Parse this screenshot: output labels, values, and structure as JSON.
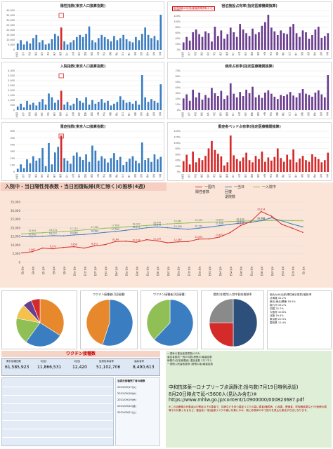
{
  "colors": {
    "blue": "#3a7dc1",
    "purple": "#6a3d8f",
    "red": "#d42a2a",
    "green": "#8fbf55",
    "orange": "#e8882c",
    "grey": "#8a8a8a",
    "dark": "#2d3d6b"
  },
  "top_charts": [
    {
      "title": "陽性指数(東京人口換算指数)",
      "color": "#3a7dc1",
      "ymax": 40000,
      "ticks": [
        "40,000",
        "35,000",
        "30,000",
        "25,000",
        "20,000",
        "15,000",
        "10,000",
        "5,000",
        "0"
      ],
      "values": [
        6,
        9,
        5,
        8,
        6,
        11,
        14,
        7,
        9,
        5,
        6,
        10,
        15,
        13,
        21,
        8,
        5,
        7,
        9,
        12,
        14,
        12,
        15,
        22,
        9,
        7,
        11,
        14,
        12,
        10,
        8,
        13,
        9,
        11,
        14,
        10,
        8,
        7,
        12,
        9,
        15,
        21,
        14,
        11,
        13,
        9,
        33
      ],
      "highlight": 14
    },
    {
      "title": "宿泊施設占有率(指定医療機関換算)",
      "color": "#6a3d8f",
      "ymax": 140,
      "ticks": [
        "140%",
        "120%",
        "100%",
        "80%",
        "60%",
        "40%",
        "20%",
        "0%"
      ],
      "note": "宿泊施設の状況(都道府県資料から)",
      "values": [
        8,
        14,
        10,
        19,
        22,
        17,
        14,
        20,
        18,
        9,
        25,
        15,
        21,
        12,
        17,
        24,
        19,
        14,
        28,
        22,
        18,
        15,
        23,
        17,
        19,
        26,
        30,
        38,
        24,
        20,
        16,
        21,
        18,
        17,
        25,
        28,
        18,
        14,
        21,
        19,
        12,
        16,
        22,
        25,
        13,
        15,
        18
      ]
    },
    {
      "title": "入院指数(東京人口換算指数)",
      "color": "#3a7dc1",
      "ymax": 4000,
      "ticks": [
        "4,000",
        "3,500",
        "3,000",
        "2,500",
        "2,000",
        "1,500",
        "1,000",
        "500",
        "0"
      ],
      "values": [
        4,
        7,
        3,
        10,
        6,
        8,
        5,
        9,
        12,
        6,
        18,
        14,
        8,
        11,
        21,
        6,
        9,
        5,
        7,
        13,
        10,
        8,
        14,
        6,
        11,
        7,
        9,
        12,
        8,
        10,
        5,
        7,
        9,
        15,
        11,
        8,
        9,
        7,
        10,
        6,
        38,
        14,
        9,
        12,
        10,
        8,
        28
      ],
      "highlight": 14
    },
    {
      "title": "病床占有率(指定医療機関換算)",
      "color": "#6a3d8f",
      "ymax": 70,
      "ticks": [
        "70%",
        "60%",
        "50%",
        "40%",
        "30%",
        "20%",
        "10%",
        "0%"
      ],
      "values": [
        20,
        27,
        16,
        35,
        22,
        30,
        18,
        26,
        21,
        38,
        29,
        24,
        33,
        19,
        25,
        46,
        28,
        22,
        31,
        24,
        35,
        29,
        40,
        22,
        26,
        21,
        30,
        34,
        28,
        23,
        19,
        26,
        24,
        27,
        31,
        25,
        22,
        29,
        36,
        28,
        26,
        23,
        30,
        34,
        27,
        22,
        60
      ]
    },
    {
      "title": "重症指数(東京人口換算指数)",
      "color": "#3a7dc1",
      "ymax": 600,
      "ticks": [
        "600",
        "500",
        "400",
        "300",
        "200",
        "100",
        "0"
      ],
      "values": [
        5,
        12,
        6,
        20,
        14,
        25,
        18,
        22,
        38,
        9,
        46,
        12,
        31,
        40,
        58,
        22,
        18,
        13,
        26,
        31,
        24,
        19,
        28,
        16,
        42,
        34,
        18,
        25,
        21,
        15,
        22,
        30,
        19,
        24,
        11,
        16,
        21,
        25,
        18,
        14,
        47,
        19,
        22,
        16,
        28,
        20,
        24
      ],
      "highlight": 14
    },
    {
      "title": "重症者ベッド占有率(指定医療機関換算)",
      "color": "#d42a2a",
      "ymax": 140,
      "ticks": [
        "140%",
        "120%",
        "100%",
        "80%",
        "60%",
        "40%",
        "20%",
        "0%"
      ],
      "values": [
        20,
        32,
        14,
        38,
        18,
        26,
        22,
        30,
        44,
        58,
        41,
        34,
        29,
        12,
        18,
        68,
        31,
        24,
        20,
        27,
        36,
        22,
        18,
        30,
        24,
        38,
        19,
        27,
        21,
        28,
        44,
        26,
        19,
        32,
        23,
        42,
        18,
        25,
        30,
        22,
        19,
        33,
        28,
        24,
        18,
        22,
        36
      ]
    }
  ],
  "prefs": [
    "北海道",
    "青森",
    "岩手",
    "宮城",
    "秋田",
    "山形",
    "福島",
    "茨城",
    "栃木",
    "群馬",
    "埼玉",
    "千葉",
    "東京",
    "神奈川",
    "新潟",
    "富山",
    "石川",
    "福井",
    "山梨",
    "長野",
    "岐阜",
    "静岡",
    "愛知",
    "三重",
    "滋賀",
    "京都",
    "大阪",
    "兵庫",
    "奈良",
    "和歌山",
    "鳥取",
    "島根",
    "岡山",
    "広島",
    "山口",
    "徳島",
    "香川",
    "愛媛",
    "高知",
    "福岡",
    "佐賀",
    "長崎",
    "熊本",
    "大分",
    "宮崎",
    "鹿児島",
    "沖縄"
  ],
  "trend": {
    "title": "入院中・当日陽性発表数・当日回復転帰(死亡除く)の推移(4週)",
    "yticks": [
      "35,000",
      "30,000",
      "25,000",
      "20,000",
      "15,000",
      "10,000",
      "5,000",
      "0"
    ],
    "legend": [
      "一国内",
      "一当日",
      "一入院中",
      "陽性者数",
      "回復",
      "退院数"
    ],
    "series": [
      {
        "name": "入院中",
        "color": "#8fbf55",
        "values": [
          16500,
          17000,
          17200,
          17600,
          17900,
          18300,
          18900,
          19200,
          19800,
          20100,
          20600,
          21000,
          21400,
          21800,
          22300,
          22600,
          22900,
          23100,
          23300,
          23500,
          23700,
          23900,
          24100,
          24200,
          24300,
          24300,
          24200,
          24100
        ]
      },
      {
        "name": "当日",
        "color": "#3a7dc1",
        "values": [
          15000,
          14800,
          15200,
          15500,
          15400,
          15900,
          16200,
          16800,
          17400,
          17900,
          18600,
          19300,
          20100,
          20500,
          20100,
          19600,
          19200,
          19800,
          20500,
          21300,
          22000,
          22800,
          23200,
          24200,
          25900,
          24100,
          22200,
          20600
        ]
      },
      {
        "name": "国内",
        "color": "#d42a2a",
        "values": [
          5500,
          6200,
          8300,
          7900,
          8700,
          9100,
          8300,
          9600,
          10300,
          12100,
          12300,
          11700,
          13200,
          12500,
          11400,
          11900,
          12100,
          13500,
          13600,
          14700,
          17200,
          21300,
          23600,
          29500,
          26800,
          22000,
          19800,
          17400
        ]
      }
    ],
    "labels_top": [
      "15,905",
      "16,574",
      "17,110",
      "17,340",
      "17,650",
      "18,007",
      "18,449",
      "18,861",
      "19,229",
      "19,629",
      "20,153",
      "20,573"
    ],
    "labels_mid": [
      "15,500",
      "16,127",
      "16,680",
      "16,984",
      "17,563",
      "18,212",
      "18,848",
      "19,300",
      "20,154",
      "21,058",
      "22,152",
      "22,766"
    ],
    "labels_low": [
      "5,967",
      "6,273",
      "7,858",
      "8,372",
      "9,164",
      "10,218",
      "11,120",
      "12,067",
      "12,873",
      "13,674",
      "17,168",
      "20,614"
    ],
    "x_labels": [
      "8月5日",
      "8月6日",
      "8月7日",
      "8月8日",
      "8月9日",
      "8月10日",
      "8月11日",
      "8月12日",
      "8月13日",
      "8月14日",
      "8月15日",
      "8月16日",
      "8月17日",
      "8月18日",
      "8月19日",
      "8月20日",
      "8月21日",
      "8月22日",
      "8月23日",
      "8月24日",
      "8月25日",
      "8月26日",
      "8月27日",
      "8月28日",
      "8月29日",
      "8月30日",
      "8月31日",
      "9月1日"
    ]
  },
  "pies": [
    {
      "title": "",
      "slices": [
        {
          "v": 34,
          "c": "#e8882c"
        },
        {
          "v": 26,
          "c": "#3a7dc1"
        },
        {
          "v": 18,
          "c": "#8fbf55"
        },
        {
          "v": 10,
          "c": "#f2c14e"
        },
        {
          "v": 6,
          "c": "#6a3d8f"
        },
        {
          "v": 6,
          "c": "#d42a2a"
        }
      ]
    },
    {
      "title": "ワクチン接種者(1回接種)",
      "slices": [
        {
          "v": 55,
          "c": "#3a7dc1"
        },
        {
          "v": 45,
          "c": "#e8882c"
        }
      ]
    },
    {
      "title": "ワクチン接種者(2回接種)",
      "slices": [
        {
          "v": 62,
          "c": "#3a7dc1"
        },
        {
          "v": 38,
          "c": "#8fbf55"
        }
      ]
    },
    {
      "title": "陽性(非陽性)入院中割合推移率",
      "slices": [
        {
          "v": 50,
          "c": "#2d4f7c"
        },
        {
          "v": 25,
          "c": "#d42a2a"
        },
        {
          "v": 25,
          "c": "#8a8a8a"
        }
      ]
    }
  ],
  "pie_box": {
    "lines": [
      "南北九州(北部)陽性東京換算(指数)率",
      "北海道 41.2%",
      "東北(東北)関東 18.5%",
      "南九州 33.2%",
      "四国 25.7%",
      "大阪府 10.8%",
      "北陸 16.4%",
      "東京都 20.3%",
      "愛知県 12.4%"
    ]
  },
  "vaccine": {
    "title": "ワクチン接種数",
    "cells": [
      {
        "cap": "累計接種回数",
        "val": "61,585,923"
      },
      {
        "cap": "1回目",
        "val": "11,866,531"
      },
      {
        "cap": "2回目",
        "val": "12,420"
      },
      {
        "cap": "医療従事者等",
        "val": "51,102,706"
      },
      {
        "cap": "高齢者等",
        "val": "8,490,613"
      }
    ],
    "side": [
      "2021/09/17(火)",
      "2021/09/18(水)",
      "2021/09/19(木)",
      "2021/09/20(金)",
      "2021/09/21(土)"
    ],
    "side_head": "当該日接種完了者の総数"
  },
  "info": {
    "top_lines": [
      "一週毎の重症者発表数(0/53)",
      "重症者数前一週平均数(療養中)最重症数",
      "療養中(自宅療養者) 重症者数 2万1千人",
      "一週間入院者数推移 (療養中者)最重症数"
    ],
    "big1": "中和抗体薬ーロナプリーブ点滴静注:投与数(7月19日特例承認)",
    "big2": "8月20日時点で延べ5600人(見込み含む)※",
    "big3": "https://www.mhlw.go.jp/content/10900000/000823687.pdf",
    "fine": "※この治療薬の対象者は中等症以下の患者で、持病などを持つ重症リスクの高い患者(糖尿病、心疾患、肥満者、呼吸器疾患など)や医療の現場での対象となるなど。重症化(一般)医療リスクの高い対象にのみ、既に診療体の中で投与を見込む療法が方法となります。"
  }
}
